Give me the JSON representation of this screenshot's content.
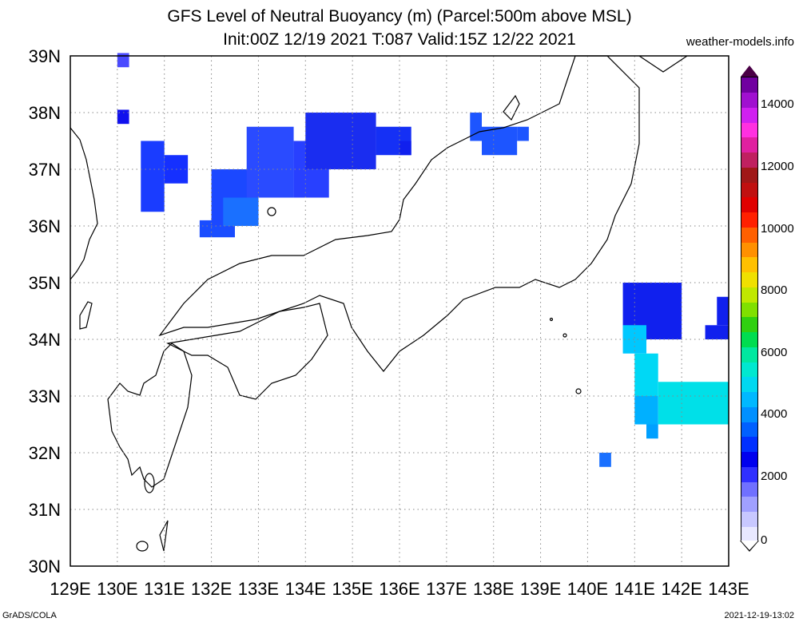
{
  "title_line1": "GFS Level of Neutral Buoyancy (m) (Parcel:500m above MSL)",
  "title_line2": "Init:00Z 12/19 2021 T:087 Valid:15Z 12/22 2021",
  "site": "weather-models.info",
  "footer_left": "GrADS/COLA",
  "footer_right": "2021-12-19-13:02",
  "lat_labels": [
    "39N",
    "38N",
    "37N",
    "36N",
    "35N",
    "34N",
    "33N",
    "32N",
    "31N",
    "30N"
  ],
  "lon_labels": [
    "129E",
    "130E",
    "131E",
    "132E",
    "133E",
    "134E",
    "135E",
    "136E",
    "137E",
    "138E",
    "139E",
    "140E",
    "141E",
    "142E",
    "143E"
  ],
  "colorbar": {
    "labels": [
      "14000",
      "12000",
      "10000",
      "8000",
      "6000",
      "4000",
      "2000",
      "0"
    ],
    "colors": [
      "#e8e8ff",
      "#c8c8ff",
      "#a0a0ff",
      "#7070ff",
      "#3030ff",
      "#0000ee",
      "#0030ff",
      "#0060ff",
      "#0090ff",
      "#00b8ff",
      "#00d8f0",
      "#00e8d0",
      "#00e8a0",
      "#00dd50",
      "#30d010",
      "#80e000",
      "#c0e800",
      "#f0e000",
      "#ffc000",
      "#ff9000",
      "#ff6000",
      "#ff2000",
      "#e00000",
      "#c01010",
      "#a01818",
      "#c02060",
      "#e020a0",
      "#ff30e0",
      "#d020f0",
      "#a010d0",
      "#7000a0"
    ]
  },
  "map_data": {
    "extent": {
      "lon": [
        129,
        143
      ],
      "lat": [
        30,
        39
      ]
    },
    "precip_cells": [
      {
        "lon": 130.0,
        "lat": 38.8,
        "w": 0.25,
        "h": 0.25,
        "color": "#4a4aff"
      },
      {
        "lon": 130.0,
        "lat": 37.8,
        "w": 0.25,
        "h": 0.25,
        "color": "#1010ee"
      },
      {
        "lon": 130.5,
        "lat": 36.25,
        "w": 0.5,
        "h": 1.25,
        "color": "#1a3cff"
      },
      {
        "lon": 131.0,
        "lat": 36.75,
        "w": 0.5,
        "h": 0.5,
        "color": "#1530ff"
      },
      {
        "lon": 131.75,
        "lat": 35.8,
        "w": 0.75,
        "h": 0.3,
        "color": "#1a4dff"
      },
      {
        "lon": 132.0,
        "lat": 36.0,
        "w": 1.0,
        "h": 1.0,
        "color": "#1b48ff"
      },
      {
        "lon": 132.25,
        "lat": 36.0,
        "w": 0.75,
        "h": 0.5,
        "color": "#1a70ff"
      },
      {
        "lon": 132.75,
        "lat": 36.5,
        "w": 1.0,
        "h": 1.25,
        "color": "#2a4bff"
      },
      {
        "lon": 133.75,
        "lat": 36.5,
        "w": 0.75,
        "h": 1.0,
        "color": "#2840ff"
      },
      {
        "lon": 134.0,
        "lat": 37.0,
        "w": 1.5,
        "h": 1.0,
        "color": "#1a2df0"
      },
      {
        "lon": 135.5,
        "lat": 37.25,
        "w": 0.75,
        "h": 0.5,
        "color": "#1530f5"
      },
      {
        "lon": 136.0,
        "lat": 37.25,
        "w": 0.25,
        "h": 0.25,
        "color": "#1020ee"
      },
      {
        "lon": 137.75,
        "lat": 37.25,
        "w": 0.75,
        "h": 0.5,
        "color": "#1d55ff"
      },
      {
        "lon": 138.5,
        "lat": 37.5,
        "w": 0.25,
        "h": 0.25,
        "color": "#1d55ff"
      },
      {
        "lon": 137.5,
        "lat": 37.5,
        "w": 0.25,
        "h": 0.5,
        "color": "#1d55ff"
      },
      {
        "lon": 140.25,
        "lat": 31.75,
        "w": 0.25,
        "h": 0.25,
        "color": "#1a70ff"
      },
      {
        "lon": 140.75,
        "lat": 34.0,
        "w": 1.25,
        "h": 1.0,
        "color": "#1020ee"
      },
      {
        "lon": 140.75,
        "lat": 33.75,
        "w": 0.5,
        "h": 0.5,
        "color": "#00c8ff"
      },
      {
        "lon": 141.0,
        "lat": 33.0,
        "w": 0.5,
        "h": 0.75,
        "color": "#00d8f5"
      },
      {
        "lon": 141.5,
        "lat": 32.5,
        "w": 1.5,
        "h": 0.75,
        "color": "#00e0e8"
      },
      {
        "lon": 141.0,
        "lat": 32.5,
        "w": 0.5,
        "h": 0.5,
        "color": "#00b0ff"
      },
      {
        "lon": 141.25,
        "lat": 32.25,
        "w": 0.25,
        "h": 0.25,
        "color": "#00a0ff"
      },
      {
        "lon": 142.5,
        "lat": 34.0,
        "w": 0.5,
        "h": 0.25,
        "color": "#1020ee"
      },
      {
        "lon": 142.75,
        "lat": 34.25,
        "w": 0.25,
        "h": 0.5,
        "color": "#1020ee"
      }
    ]
  }
}
